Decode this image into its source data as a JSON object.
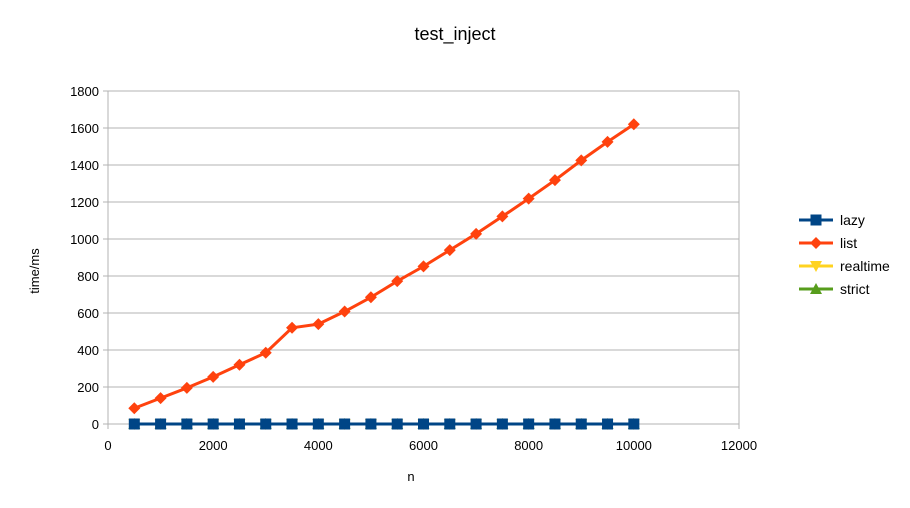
{
  "chart_data": {
    "type": "line",
    "title": "test_inject",
    "xlabel": "n",
    "ylabel": "time/ms",
    "xlim": [
      0,
      12000
    ],
    "ylim": [
      0,
      1800
    ],
    "xticks": [
      "0",
      "2000",
      "4000",
      "6000",
      "8000",
      "10000",
      "12000"
    ],
    "yticks": [
      "0",
      "200",
      "400",
      "600",
      "800",
      "1000",
      "1200",
      "1400",
      "1600",
      "1800"
    ],
    "grid": "horizontal",
    "legend_position": "right",
    "x": [
      500,
      1000,
      1500,
      2000,
      2500,
      3000,
      3500,
      4000,
      4500,
      5000,
      5500,
      6000,
      6500,
      7000,
      7500,
      8000,
      8500,
      9000,
      9500,
      10000
    ],
    "series": [
      {
        "name": "lazy",
        "color": "#004586",
        "marker": "square",
        "values": [
          0,
          0,
          0,
          0,
          0,
          0,
          0,
          0,
          0,
          0,
          0,
          0,
          0,
          0,
          0,
          0,
          0,
          0,
          0,
          0
        ]
      },
      {
        "name": "list",
        "color": "#ff420e",
        "marker": "diamond",
        "values": [
          85,
          140,
          195,
          255,
          320,
          385,
          520,
          540,
          608,
          685,
          772,
          852,
          940,
          1028,
          1122,
          1218,
          1318,
          1425,
          1525,
          1620
        ]
      },
      {
        "name": "realtime",
        "color": "#ffd320",
        "marker": "triangle-down",
        "values": [
          0,
          0,
          0,
          0,
          0,
          0,
          0,
          0,
          0,
          0,
          0,
          0,
          0,
          0,
          0,
          0,
          0,
          0,
          0,
          0
        ]
      },
      {
        "name": "strict",
        "color": "#579d1c",
        "marker": "triangle-up",
        "values": [
          0,
          0,
          0,
          0,
          0,
          0,
          0,
          0,
          0,
          0,
          0,
          0,
          0,
          0,
          0,
          0,
          0,
          0,
          0,
          0
        ]
      }
    ]
  }
}
